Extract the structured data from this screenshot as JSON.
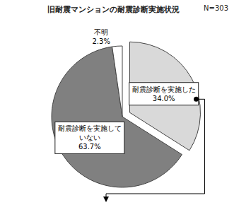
{
  "chart_data": {
    "type": "pie",
    "title": "旧耐震マンションの耐震診断実施状況",
    "subtitle": "N=303",
    "categories": [
      "耐震診断を実施した",
      "耐震診断を実施していない",
      "不明"
    ],
    "values": [
      34.0,
      63.7,
      2.3
    ],
    "value_labels": [
      "34.0%",
      "63.7%",
      "2.3%"
    ],
    "colors": [
      "#d9d9d9",
      "#808080",
      "#ffffff"
    ],
    "data_labels": true
  }
}
